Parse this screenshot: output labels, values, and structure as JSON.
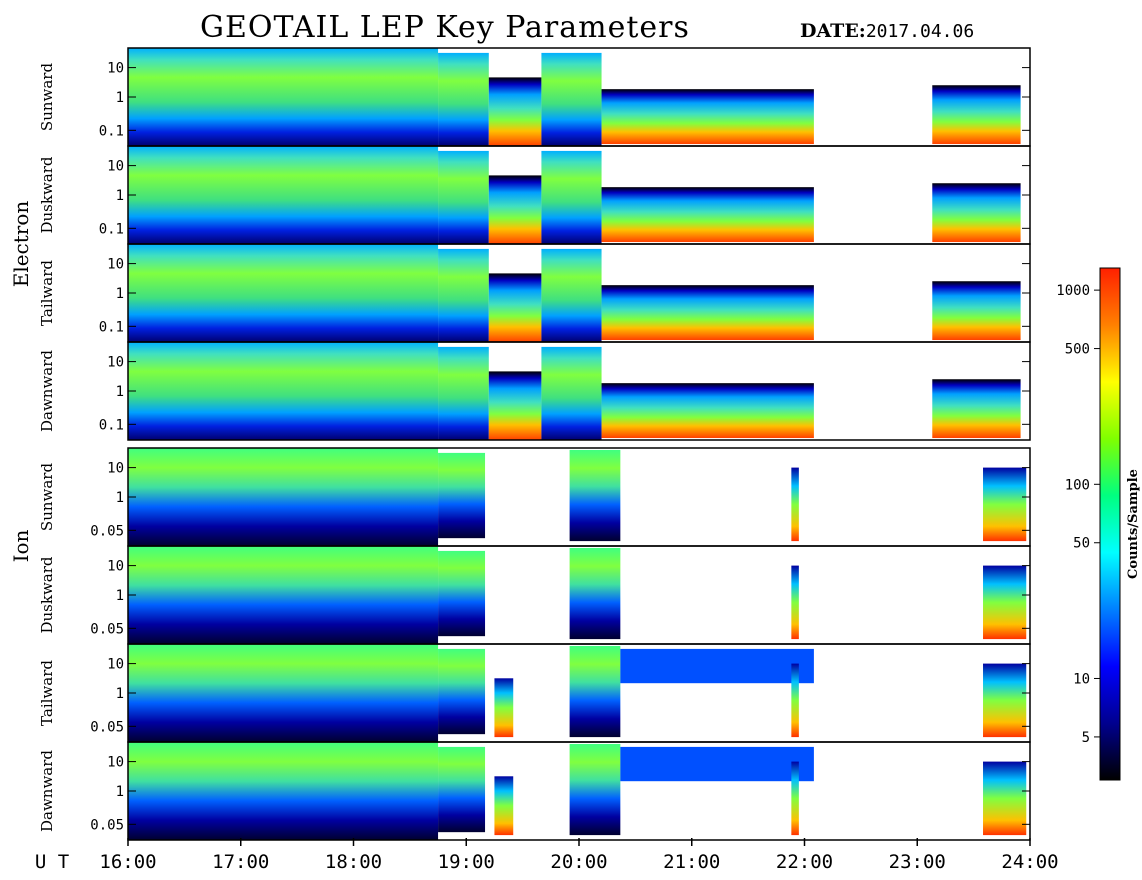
{
  "header": {
    "title": "GEOTAIL LEP Key Parameters",
    "date_label": "DATE:",
    "date_value": "2017.04.06"
  },
  "groups": [
    {
      "name": "Electron"
    },
    {
      "name": "Ion"
    }
  ],
  "chart_data": {
    "type": "heatmap",
    "x_axis_label": "U T",
    "x_ticks": [
      "16:00",
      "17:00",
      "18:00",
      "19:00",
      "20:00",
      "21:00",
      "22:00",
      "23:00",
      "24:00"
    ],
    "xlim": [
      "16:00",
      "24:00"
    ],
    "scale": "log",
    "colorbar": {
      "label": "Counts/Sample",
      "ticks": [
        1000,
        500,
        100,
        50,
        10,
        5
      ],
      "range": [
        3,
        1300
      ],
      "colors": [
        "#000000",
        "#00008f",
        "#0000ff",
        "#0080ff",
        "#00ffff",
        "#00ff80",
        "#80ff00",
        "#ffff00",
        "#ff8000",
        "#ff2000"
      ]
    },
    "panels": [
      {
        "group": "Electron",
        "label": "Sunward",
        "y_ticks": [
          "10",
          "1",
          "0.1"
        ],
        "y_values": [
          10,
          1,
          0.1
        ]
      },
      {
        "group": "Electron",
        "label": "Duskward",
        "y_ticks": [
          "10",
          "1",
          "0.1"
        ],
        "y_values": [
          10,
          1,
          0.1
        ]
      },
      {
        "group": "Electron",
        "label": "Tailward",
        "y_ticks": [
          "10",
          "1",
          "0.1"
        ],
        "y_values": [
          10,
          1,
          0.1
        ]
      },
      {
        "group": "Electron",
        "label": "Dawnward",
        "y_ticks": [
          "10",
          "1",
          "0.1"
        ],
        "y_values": [
          10,
          1,
          0.1
        ]
      },
      {
        "group": "Ion",
        "label": "Sunward",
        "y_ticks": [
          "10",
          "1",
          "0.05"
        ],
        "y_values": [
          10,
          1,
          0.05
        ]
      },
      {
        "group": "Ion",
        "label": "Duskward",
        "y_ticks": [
          "10",
          "1",
          "0.05"
        ],
        "y_values": [
          10,
          1,
          0.05
        ]
      },
      {
        "group": "Ion",
        "label": "Tailward",
        "y_ticks": [
          "10",
          "1",
          "0.05"
        ],
        "y_values": [
          10,
          1,
          0.05
        ]
      },
      {
        "group": "Ion",
        "label": "Dawnward",
        "y_ticks": [
          "10",
          "1",
          "0.05"
        ],
        "y_values": [
          10,
          1,
          0.05
        ]
      }
    ],
    "data_gaps": [
      [
        "22:05",
        "23:08"
      ]
    ]
  }
}
